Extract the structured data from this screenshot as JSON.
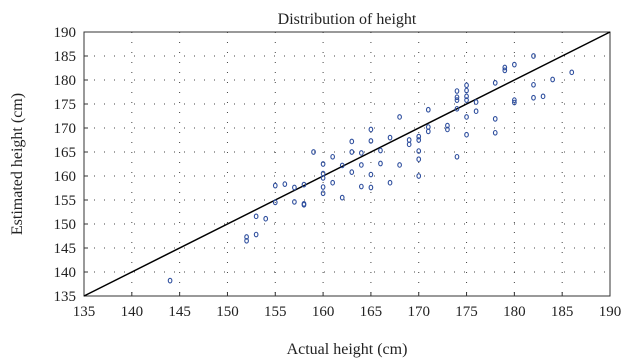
{
  "chart_data": {
    "type": "scatter",
    "title": "Distribution of height",
    "xlabel": "Actual height (cm)",
    "ylabel": "Estimated height (cm)",
    "xlim": [
      135,
      190
    ],
    "ylim": [
      135,
      190
    ],
    "xticks": [
      135,
      140,
      145,
      150,
      155,
      160,
      165,
      170,
      175,
      180,
      185,
      190
    ],
    "yticks": [
      135,
      140,
      145,
      150,
      155,
      160,
      165,
      170,
      175,
      180,
      185,
      190
    ],
    "grid": "dotted",
    "reference_line": {
      "from": [
        135,
        135
      ],
      "to": [
        190,
        190
      ]
    },
    "marker_color": "#2f4f9e",
    "line_color": "#000000",
    "series": [
      {
        "points": [
          [
            144,
            138.2
          ],
          [
            152,
            146.5
          ],
          [
            152,
            147.3
          ],
          [
            153,
            147.8
          ],
          [
            153,
            151.6
          ],
          [
            154,
            151.1
          ],
          [
            155,
            154.5
          ],
          [
            155,
            158.0
          ],
          [
            156,
            158.3
          ],
          [
            157,
            157.6
          ],
          [
            157,
            154.6
          ],
          [
            158,
            154.2
          ],
          [
            158,
            154.0
          ],
          [
            158,
            158.2
          ],
          [
            159,
            165.0
          ],
          [
            160,
            160.5
          ],
          [
            160,
            159.6
          ],
          [
            160,
            157.7
          ],
          [
            160,
            156.4
          ],
          [
            160,
            162.5
          ],
          [
            161,
            158.6
          ],
          [
            161,
            164.0
          ],
          [
            162,
            162.2
          ],
          [
            162,
            155.5
          ],
          [
            163,
            165.0
          ],
          [
            163,
            167.2
          ],
          [
            163,
            160.8
          ],
          [
            164,
            157.8
          ],
          [
            164,
            162.3
          ],
          [
            164,
            164.8
          ],
          [
            165,
            169.7
          ],
          [
            165,
            167.3
          ],
          [
            165,
            160.3
          ],
          [
            165,
            157.6
          ],
          [
            166,
            165.3
          ],
          [
            166,
            162.6
          ],
          [
            167,
            168.0
          ],
          [
            167,
            158.6
          ],
          [
            168,
            172.3
          ],
          [
            168,
            162.3
          ],
          [
            169,
            166.6
          ],
          [
            169,
            167.5
          ],
          [
            170,
            167.5
          ],
          [
            170,
            163.5
          ],
          [
            170,
            160.0
          ],
          [
            170,
            168.2
          ],
          [
            170,
            165.2
          ],
          [
            171,
            170.2
          ],
          [
            171,
            169.3
          ],
          [
            171,
            173.8
          ],
          [
            173,
            170.5
          ],
          [
            173,
            169.7
          ],
          [
            174,
            174.0
          ],
          [
            174,
            175.8
          ],
          [
            174,
            176.4
          ],
          [
            174,
            177.7
          ],
          [
            174,
            164.0
          ],
          [
            175,
            172.3
          ],
          [
            175,
            168.6
          ],
          [
            175,
            176.6
          ],
          [
            175,
            177.8
          ],
          [
            175,
            178.9
          ],
          [
            175,
            175.8
          ],
          [
            176,
            175.4
          ],
          [
            176,
            173.5
          ],
          [
            178,
            179.4
          ],
          [
            178,
            171.9
          ],
          [
            178,
            169.0
          ],
          [
            179,
            182.0
          ],
          [
            179,
            182.6
          ],
          [
            180,
            175.3
          ],
          [
            180,
            175.8
          ],
          [
            180,
            183.2
          ],
          [
            182,
            185.0
          ],
          [
            182,
            179.0
          ],
          [
            182,
            176.3
          ],
          [
            183,
            176.6
          ],
          [
            184,
            180.1
          ],
          [
            186,
            181.6
          ]
        ]
      }
    ]
  }
}
